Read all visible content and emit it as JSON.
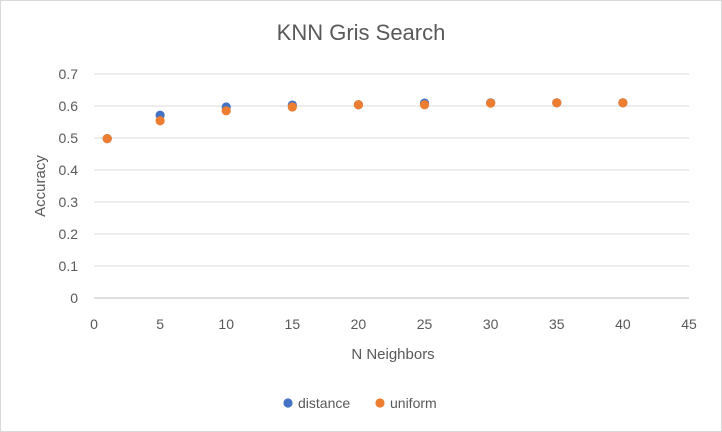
{
  "chart_data": {
    "type": "scatter",
    "title": "KNN Gris Search",
    "xlabel": "N Neighbors",
    "ylabel": "Accuracy",
    "xlim": [
      0,
      45
    ],
    "ylim": [
      0,
      0.7
    ],
    "xticks": [
      0,
      5,
      10,
      15,
      20,
      25,
      30,
      35,
      40,
      45
    ],
    "yticks": [
      0,
      0.1,
      0.2,
      0.3,
      0.4,
      0.5,
      0.6,
      0.7
    ],
    "grid": "horizontal",
    "legend_position": "bottom",
    "series": [
      {
        "name": "distance",
        "color": "#4472c4",
        "points": [
          [
            1,
            0.498
          ],
          [
            5,
            0.571
          ],
          [
            10,
            0.597
          ],
          [
            15,
            0.603
          ],
          [
            20,
            0.604
          ],
          [
            25,
            0.609
          ],
          [
            30,
            0.61
          ],
          [
            35,
            0.61
          ],
          [
            40,
            0.61
          ]
        ]
      },
      {
        "name": "uniform",
        "color": "#ed7d31",
        "points": [
          [
            1,
            0.498
          ],
          [
            5,
            0.554
          ],
          [
            10,
            0.585
          ],
          [
            15,
            0.597
          ],
          [
            20,
            0.604
          ],
          [
            25,
            0.604
          ],
          [
            30,
            0.609
          ],
          [
            35,
            0.61
          ],
          [
            40,
            0.61
          ]
        ]
      }
    ]
  }
}
